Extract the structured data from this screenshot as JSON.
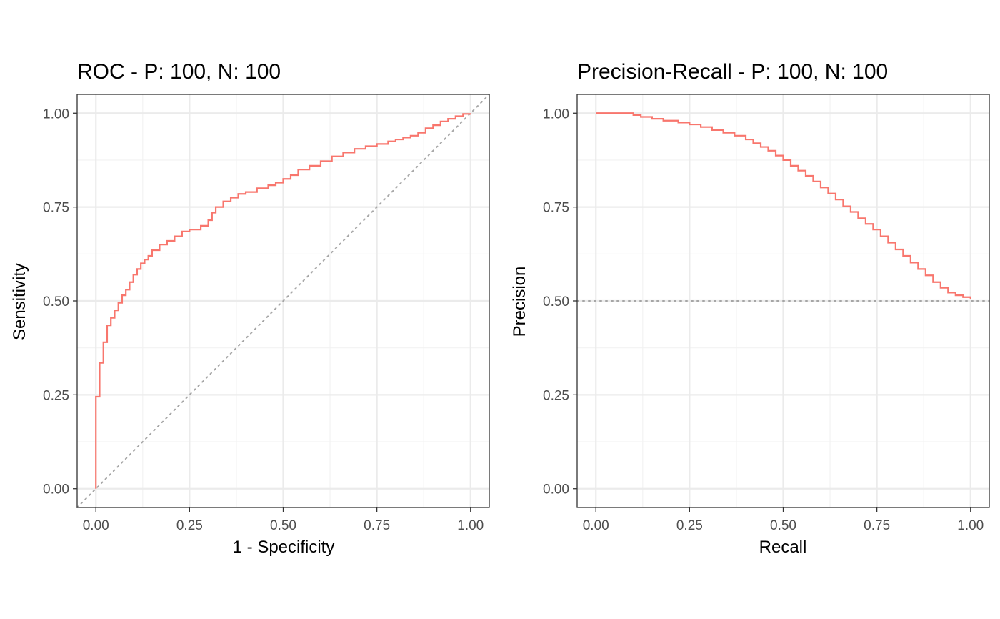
{
  "chart_data": [
    {
      "type": "line",
      "title": "ROC - P: 100, N: 100",
      "xlabel": "1 - Specificity",
      "ylabel": "Sensitivity",
      "xlim": [
        -0.05,
        1.05
      ],
      "ylim": [
        -0.05,
        1.05
      ],
      "xticks": [
        "0.00",
        "0.25",
        "0.50",
        "0.75",
        "1.00"
      ],
      "yticks": [
        "0.00",
        "0.25",
        "0.50",
        "0.75",
        "1.00"
      ],
      "grid": true,
      "reference_line": {
        "style": "dotted",
        "color": "#a6a6a6",
        "from": [
          -0.05,
          -0.05
        ],
        "to": [
          1.05,
          1.05
        ]
      },
      "series": [
        {
          "color": "#f8766d",
          "step": true,
          "x": [
            0.0,
            0.0,
            0.0,
            0.01,
            0.02,
            0.03,
            0.04,
            0.05,
            0.06,
            0.07,
            0.08,
            0.09,
            0.1,
            0.11,
            0.12,
            0.13,
            0.14,
            0.15,
            0.17,
            0.19,
            0.21,
            0.23,
            0.25,
            0.28,
            0.3,
            0.31,
            0.32,
            0.34,
            0.36,
            0.38,
            0.4,
            0.43,
            0.46,
            0.48,
            0.5,
            0.52,
            0.54,
            0.57,
            0.6,
            0.63,
            0.66,
            0.69,
            0.72,
            0.75,
            0.78,
            0.8,
            0.82,
            0.84,
            0.86,
            0.88,
            0.9,
            0.92,
            0.94,
            0.96,
            0.98,
            1.0
          ],
          "y": [
            0.0,
            0.245,
            0.245,
            0.335,
            0.39,
            0.435,
            0.455,
            0.475,
            0.495,
            0.515,
            0.53,
            0.55,
            0.57,
            0.585,
            0.6,
            0.61,
            0.62,
            0.635,
            0.65,
            0.66,
            0.672,
            0.685,
            0.69,
            0.7,
            0.715,
            0.735,
            0.75,
            0.765,
            0.775,
            0.785,
            0.79,
            0.8,
            0.808,
            0.815,
            0.825,
            0.835,
            0.85,
            0.86,
            0.872,
            0.885,
            0.895,
            0.905,
            0.912,
            0.918,
            0.925,
            0.93,
            0.935,
            0.94,
            0.948,
            0.96,
            0.968,
            0.978,
            0.985,
            0.992,
            0.998,
            1.0
          ]
        }
      ]
    },
    {
      "type": "line",
      "title": "Precision-Recall - P: 100, N: 100",
      "xlabel": "Recall",
      "ylabel": "Precision",
      "xlim": [
        -0.05,
        1.05
      ],
      "ylim": [
        -0.05,
        1.05
      ],
      "xticks": [
        "0.00",
        "0.25",
        "0.50",
        "0.75",
        "1.00"
      ],
      "yticks": [
        "0.00",
        "0.25",
        "0.50",
        "0.75",
        "1.00"
      ],
      "grid": true,
      "reference_line": {
        "style": "dotted",
        "color": "#a6a6a6",
        "from": [
          -0.05,
          0.5
        ],
        "to": [
          1.05,
          0.5
        ]
      },
      "series": [
        {
          "color": "#f8766d",
          "step": true,
          "x": [
            0.0,
            0.1,
            0.12,
            0.15,
            0.18,
            0.22,
            0.25,
            0.28,
            0.31,
            0.34,
            0.37,
            0.4,
            0.42,
            0.44,
            0.46,
            0.48,
            0.5,
            0.52,
            0.54,
            0.56,
            0.58,
            0.6,
            0.62,
            0.64,
            0.66,
            0.68,
            0.7,
            0.72,
            0.74,
            0.76,
            0.78,
            0.8,
            0.82,
            0.84,
            0.86,
            0.88,
            0.9,
            0.92,
            0.94,
            0.96,
            0.98,
            1.0
          ],
          "y": [
            1.0,
            0.995,
            0.99,
            0.985,
            0.98,
            0.975,
            0.97,
            0.963,
            0.955,
            0.948,
            0.94,
            0.93,
            0.92,
            0.91,
            0.9,
            0.887,
            0.875,
            0.86,
            0.847,
            0.833,
            0.818,
            0.802,
            0.786,
            0.77,
            0.752,
            0.737,
            0.72,
            0.705,
            0.69,
            0.672,
            0.655,
            0.637,
            0.62,
            0.602,
            0.585,
            0.568,
            0.55,
            0.535,
            0.522,
            0.515,
            0.51,
            0.505
          ]
        }
      ]
    }
  ]
}
